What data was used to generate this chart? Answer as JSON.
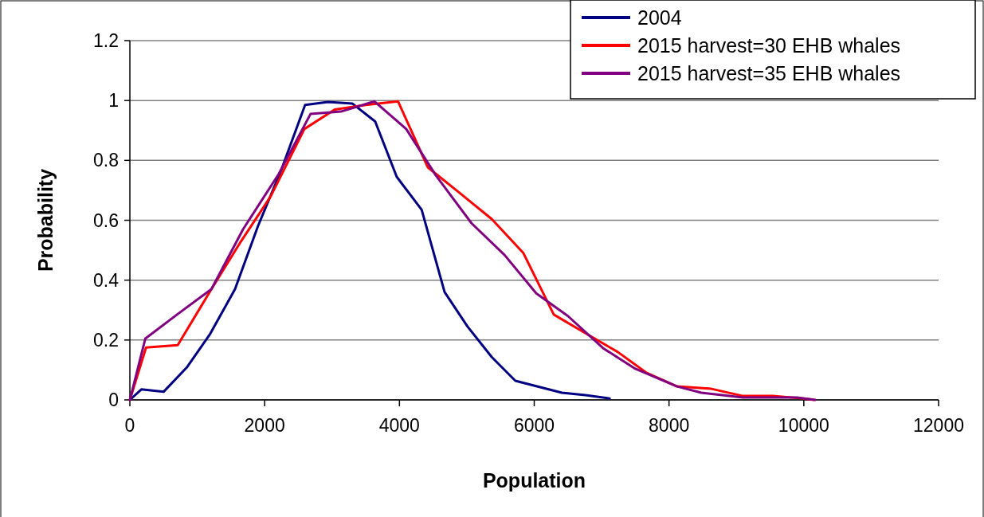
{
  "chart_data": {
    "type": "line",
    "xlabel": "Population",
    "ylabel": "Probability",
    "xlim": [
      0,
      12000
    ],
    "xticks": [
      0,
      2000,
      4000,
      6000,
      8000,
      10000,
      12000
    ],
    "ylim": [
      0,
      1.2
    ],
    "yticks": [
      0,
      0.2,
      0.4,
      0.6,
      0.8,
      1,
      1.2
    ],
    "grid": "y",
    "legend": "top right",
    "marker": "none",
    "series": [
      {
        "name": "2004",
        "color": "#000080",
        "x": [
          0,
          170,
          500,
          850,
          1190,
          1560,
          1900,
          2250,
          2600,
          2940,
          3300,
          3640,
          3960,
          4330,
          4670,
          5010,
          5370,
          5720,
          6410,
          6760,
          7120
        ],
        "values": [
          0,
          0.035,
          0.027,
          0.11,
          0.22,
          0.37,
          0.58,
          0.77,
          0.985,
          0.995,
          0.99,
          0.93,
          0.745,
          0.635,
          0.36,
          0.245,
          0.143,
          0.064,
          0.024,
          0.016,
          0.005
        ]
      },
      {
        "name": "2015 harvest=30 EHB whales",
        "color": "#ff0000",
        "x": [
          0,
          240,
          710,
          1210,
          1650,
          2090,
          2590,
          3040,
          3500,
          3980,
          4420,
          4900,
          5370,
          5840,
          6290,
          6780,
          7240,
          7670,
          8120,
          8630,
          9100,
          9540,
          9980,
          10150
        ],
        "values": [
          0,
          0.175,
          0.183,
          0.37,
          0.53,
          0.68,
          0.905,
          0.97,
          0.985,
          0.997,
          0.777,
          0.69,
          0.604,
          0.49,
          0.285,
          0.22,
          0.16,
          0.09,
          0.045,
          0.037,
          0.013,
          0.013,
          0.005,
          0
        ]
      },
      {
        "name": "2015 harvest=35 EHB whales",
        "color": "#800080",
        "x": [
          0,
          230,
          700,
          1210,
          1680,
          2210,
          2680,
          3130,
          3630,
          4100,
          4540,
          5070,
          5560,
          6030,
          6500,
          7020,
          7500,
          8120,
          8480,
          9100,
          9900,
          10170
        ],
        "values": [
          0,
          0.205,
          0.285,
          0.37,
          0.57,
          0.755,
          0.955,
          0.963,
          0.997,
          0.905,
          0.75,
          0.59,
          0.484,
          0.356,
          0.28,
          0.173,
          0.104,
          0.045,
          0.024,
          0.008,
          0.008,
          0
        ]
      }
    ]
  }
}
